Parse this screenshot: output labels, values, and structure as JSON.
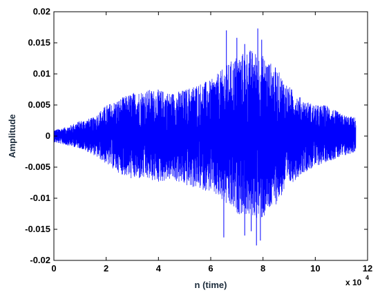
{
  "chart_data": {
    "type": "line",
    "xlabel": "n (time)",
    "ylabel": "Amplitude",
    "x_multiplier_label": "x 10",
    "x_multiplier_exponent": "4",
    "xlim": [
      0,
      12
    ],
    "ylim": [
      -0.02,
      0.02
    ],
    "x_ticks": [
      "0",
      "2",
      "4",
      "6",
      "8",
      "10",
      "12"
    ],
    "y_ticks": [
      "-0.02",
      "-0.015",
      "-0.01",
      "-0.005",
      "0",
      "0.005",
      "0.01",
      "0.015",
      "0.02"
    ],
    "grid": false,
    "line_color": "#0000ff",
    "x_end": 11.55,
    "series": [
      {
        "envelope_x": [
          0,
          0.5,
          1,
          1.5,
          2,
          2.5,
          3,
          3.5,
          4,
          4.5,
          5,
          5.5,
          6,
          6.5,
          7,
          7.5,
          8,
          8.5,
          9,
          9.5,
          10,
          10.5,
          11,
          11.55
        ],
        "upper": [
          0.001,
          0.0015,
          0.0025,
          0.003,
          0.005,
          0.006,
          0.007,
          0.0075,
          0.0075,
          0.007,
          0.0075,
          0.0085,
          0.009,
          0.011,
          0.013,
          0.014,
          0.013,
          0.011,
          0.008,
          0.006,
          0.005,
          0.005,
          0.0035,
          0.003
        ],
        "lower": [
          -0.001,
          -0.0015,
          -0.002,
          -0.003,
          -0.0045,
          -0.006,
          -0.007,
          -0.007,
          -0.0075,
          -0.007,
          -0.008,
          -0.0085,
          -0.009,
          -0.011,
          -0.0125,
          -0.013,
          -0.0135,
          -0.011,
          -0.008,
          -0.006,
          -0.005,
          -0.004,
          -0.0035,
          -0.0025
        ]
      }
    ],
    "peaks": [
      {
        "x": 6.6,
        "y": 0.017
      },
      {
        "x": 7.0,
        "y": 0.0158
      },
      {
        "x": 7.3,
        "y": 0.0148
      },
      {
        "x": 7.8,
        "y": 0.0173
      },
      {
        "x": 7.95,
        "y": 0.0155
      },
      {
        "x": 6.5,
        "y": -0.0163
      },
      {
        "x": 7.3,
        "y": -0.016
      },
      {
        "x": 7.55,
        "y": -0.0153
      },
      {
        "x": 7.75,
        "y": -0.0176
      },
      {
        "x": 7.9,
        "y": -0.0168
      }
    ]
  }
}
